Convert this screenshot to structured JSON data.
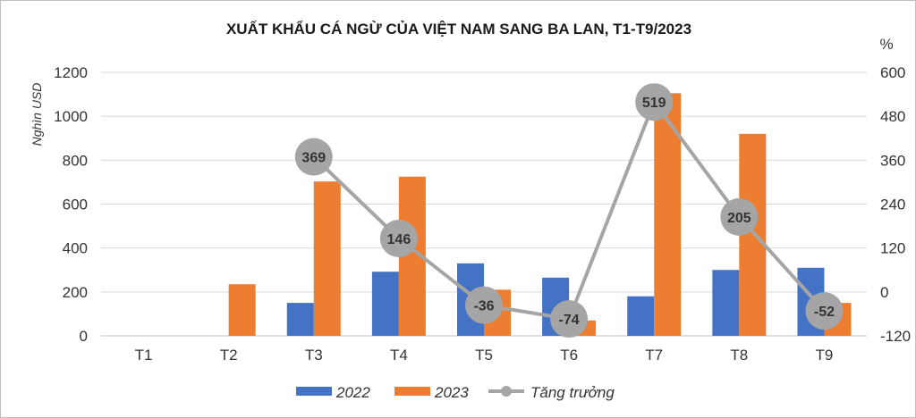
{
  "chart_data": {
    "type": "bar",
    "title": "XUẤT KHẨU CÁ NGỪ CỦA VIỆT NAM SANG BA LAN, T1-T9/2023",
    "categories": [
      "T1",
      "T2",
      "T3",
      "T4",
      "T5",
      "T6",
      "T7",
      "T8",
      "T9"
    ],
    "ylabel": "Nghìn USD",
    "y2label": "%",
    "ylim": [
      0,
      1200
    ],
    "y2lim": [
      -120,
      600
    ],
    "yticks": [
      "0",
      "200",
      "400",
      "600",
      "800",
      "1000",
      "1200"
    ],
    "y2ticks": [
      "-120",
      "0",
      "120",
      "240",
      "360",
      "480",
      "600"
    ],
    "series": [
      {
        "name": "2022",
        "type": "bar",
        "color": "#4472c4",
        "values": [
          0,
          0,
          150,
          292,
          330,
          265,
          180,
          300,
          310
        ]
      },
      {
        "name": "2023",
        "type": "bar",
        "color": "#ed7d31",
        "values": [
          0,
          235,
          703,
          725,
          210,
          70,
          1105,
          920,
          150
        ]
      },
      {
        "name": "Tăng trưởng",
        "type": "line",
        "axis": "right",
        "color": "#a5a5a5",
        "x": [
          "T3",
          "T4",
          "T5",
          "T6",
          "T7",
          "T8",
          "T9"
        ],
        "values": [
          369,
          146,
          -36,
          -74,
          519,
          205,
          -52
        ],
        "labels": [
          "369",
          "146",
          "-36",
          "-74",
          "519",
          "205",
          "-52"
        ]
      }
    ],
    "grid": true,
    "legend": "bottom"
  }
}
